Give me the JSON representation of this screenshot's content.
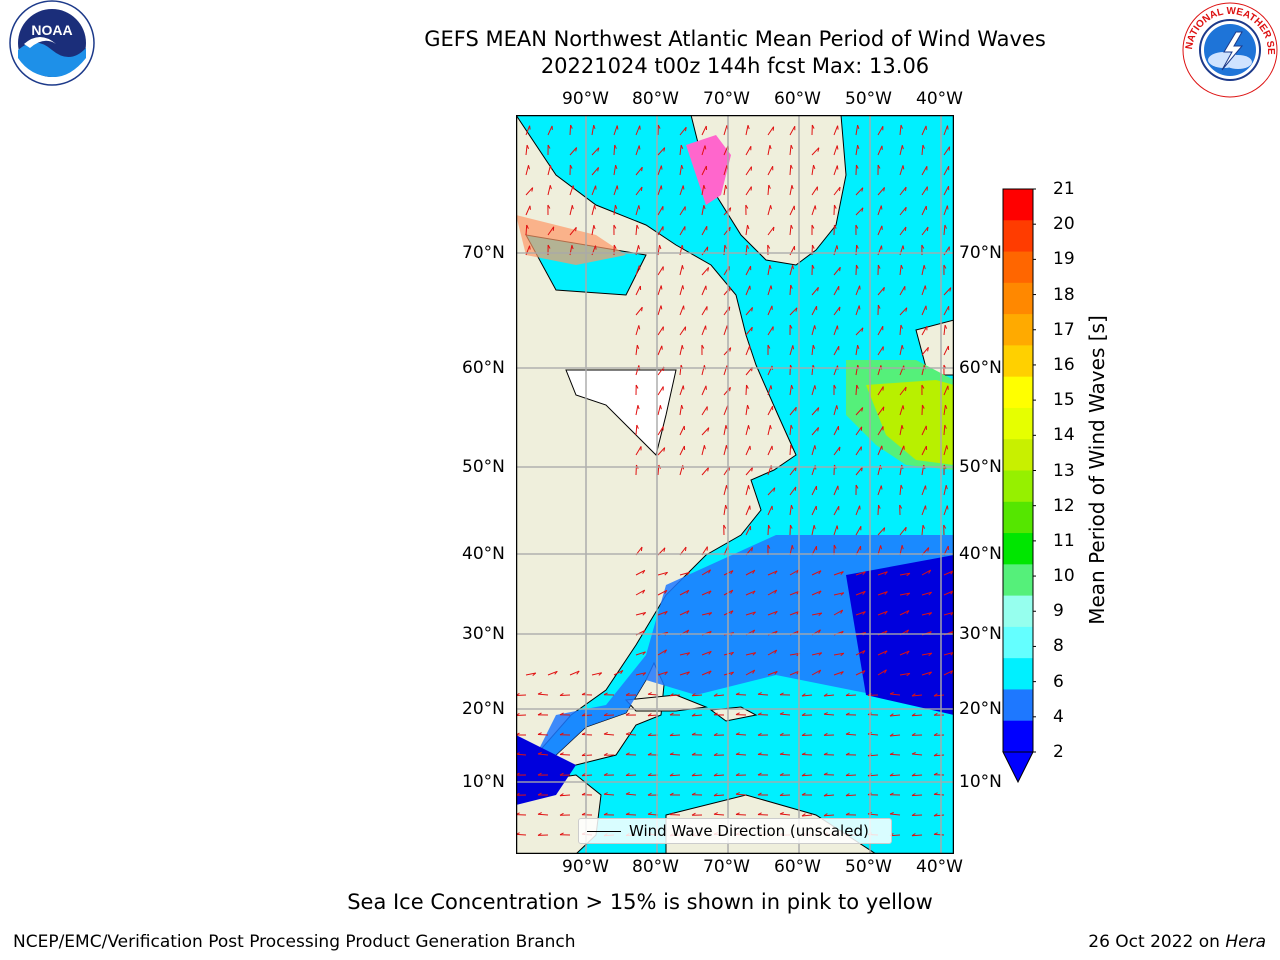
{
  "title": {
    "line1": "GEFS MEAN Northwest Atlantic Mean Period of Wind Waves",
    "line2": "20221024 t00z 144h fcst   Max: 13.06"
  },
  "map": {
    "lon_ticks": [
      "90°W",
      "80°W",
      "70°W",
      "60°W",
      "50°W",
      "40°W"
    ],
    "lat_ticks": [
      "10°N",
      "20°N",
      "30°N",
      "40°N",
      "50°N",
      "60°N",
      "70°N"
    ],
    "legend_label": "Wind Wave Direction (unscaled)",
    "colors": {
      "ocean_low": "#0000dd",
      "ocean_2_4": "#1e78ff",
      "ocean_4_6": "#00f0ff",
      "ocean_6_8": "#64ffff",
      "ocean_9_10": "#55f07a",
      "ocean_11_13": "#b8f000",
      "land": "#efefdc",
      "grid": "#aaaaaa",
      "arrows": "#e01010"
    },
    "high_period_region": "Labrador Sea / south of Greenland, 12–13 s"
  },
  "colorbar": {
    "label": "Mean Period of Wind Waves [s]",
    "ticks": [
      "21",
      "20",
      "19",
      "18",
      "17",
      "16",
      "15",
      "14",
      "13",
      "12",
      "11",
      "10",
      "9",
      "8",
      "6",
      "4",
      "2"
    ],
    "colors": [
      "#ff0000",
      "#ff3c00",
      "#ff6600",
      "#ff8800",
      "#ffaa00",
      "#ffd000",
      "#ffff00",
      "#e6ff00",
      "#c8f000",
      "#96f000",
      "#55e600",
      "#00e600",
      "#55f07a",
      "#96ffee",
      "#64ffff",
      "#00f0ff",
      "#1e78ff",
      "#0000ff"
    ]
  },
  "logos": {
    "noaa": {
      "name": "noaa-logo",
      "text": "NOAA"
    },
    "nws": {
      "name": "nws-logo",
      "text": "NATIONAL WEATHER SERVICE"
    }
  },
  "note": "Sea Ice Concentration > 15% is shown in pink to yellow",
  "footer": {
    "left": "NCEP/EMC/Verification Post Processing Product Generation Branch",
    "right_date": "26 Oct 2022 on",
    "right_host": "Hera"
  }
}
